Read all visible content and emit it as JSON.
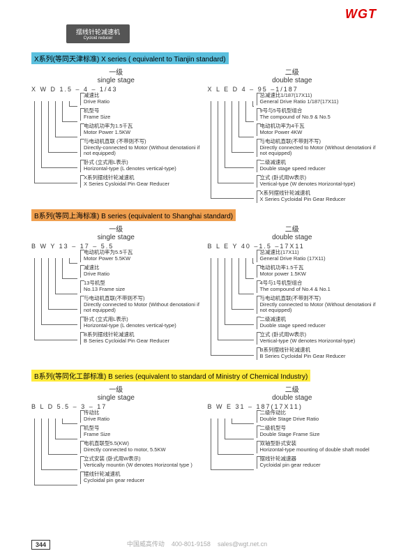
{
  "logo": "WGT",
  "tab": {
    "cn": "摆线针轮减速机",
    "en": "Cycloid reducer"
  },
  "pageNumber": "344",
  "footer": {
    "company": "中国威高传动",
    "phone": "400-801-9158",
    "email": "sales@wgt.net.cn"
  },
  "sections": [
    {
      "headerClass": "hdr-blue",
      "header": "X系列(等同天津标准)   X series ( equivalent to Tianjin standard)",
      "single": {
        "titleCn": "一级",
        "titleEn": "single stage",
        "code": "X  W  D  1.5 – 4 – 1/43",
        "items": [
          {
            "cn": "减速比",
            "en": "Drive Ratio"
          },
          {
            "cn": "机型号",
            "en": "Frame Size"
          },
          {
            "cn": "电动机功率为1.5千瓦",
            "en": "Motor Power 1.5KW"
          },
          {
            "cn": "与电动机直联 (不带则不写)",
            "en": "Directly-connected to Motor (Without denotationi if not equipped)"
          },
          {
            "cn": "卧式 (立式用L表示)",
            "en": "Horizontal-type (L denotes vertical-type)"
          },
          {
            "cn": "X系列摆线针轮减速机",
            "en": "X Series Cysloidal Pin Gear Reducer"
          }
        ]
      },
      "double": {
        "titleCn": "二级",
        "titleEn": "double stage",
        "code": "X  L  E  D  4 – 95 –1/187",
        "items": [
          {
            "cn": "总减速比1/187(17X11)",
            "en": "General Drive Ratio 1/187(17X11)"
          },
          {
            "cn": "9号与5号机型组合",
            "en": "The compound of No.9 & No.5"
          },
          {
            "cn": "电动机功率为4千瓦",
            "en": "Motor Power 4KW"
          },
          {
            "cn": "与电动机直联(不带则不写)",
            "en": "Directly connected to Motor (Without denotationi if not equipped)"
          },
          {
            "cn": "二级减速机",
            "en": "Double stage speed reducer"
          },
          {
            "cn": "立式 (卧式用W表示)",
            "en": "Vertical-type (W denotes Horizontal-type)"
          },
          {
            "cn": "X系列摆线针轮减速机",
            "en": "X Series Cycloidal Pin Gear Reducer"
          }
        ]
      }
    },
    {
      "headerClass": "hdr-orange",
      "header": "B系列(等同上海标准)   B series (equivalent to Shanghai standard)",
      "single": {
        "titleCn": "一级",
        "titleEn": "single stage",
        "code": "B  W  Y  13 – 17 – 5.5",
        "items": [
          {
            "cn": "电动机功率为5.5千瓦",
            "en": "Motor Power 5.5KW"
          },
          {
            "cn": "减速比",
            "en": "Drive Ratio"
          },
          {
            "cn": "13号机型",
            "en": "No.13 Frame size"
          },
          {
            "cn": "与电动机直联(不带则不写)",
            "en": "Directly connected to Motor (Without denotationi if not equipped)"
          },
          {
            "cn": "卧式 (立式用L表示)",
            "en": "Horizontal-type (L denotes vertical-type)"
          },
          {
            "cn": "B系列摆线针轮减速机",
            "en": "B Series Cycloidal Pin Gear Reducer"
          }
        ]
      },
      "double": {
        "titleCn": "二级",
        "titleEn": "double stage",
        "code": "B  L  E  Y  40 –1.5 –17X11",
        "items": [
          {
            "cn": "总减速比(17X11)",
            "en": "General Drive Ratio (17X11)"
          },
          {
            "cn": "电动机功率1.5千瓦",
            "en": "Motor power 1.5KW"
          },
          {
            "cn": "4号与1号机型组合",
            "en": "The compound of No.4 & No.1"
          },
          {
            "cn": "与电动机直联(不带则不写)",
            "en": "Directly connected to Motor (Without denotationi if not equipped)"
          },
          {
            "cn": "二级减速机",
            "en": "Duoble stage speed reducer"
          },
          {
            "cn": "立式 (卧式用W表示)",
            "en": "Vertical-type (W denotes Horizontal-type)"
          },
          {
            "cn": "B系列摆线针轮减速机",
            "en": "B Series Cycloidal Pin Gear Reducer"
          }
        ]
      }
    },
    {
      "headerClass": "hdr-yellow",
      "header": "B系列(等同化工部标准)   B series (equivalent to standard of Ministry of Chemical Industry)",
      "single": {
        "titleCn": "一级",
        "titleEn": "single stage",
        "code": "B    L    D 5.5 – 3 – 17",
        "items": [
          {
            "cn": "传动比",
            "en": "Drive Ratio"
          },
          {
            "cn": "机型号",
            "en": "Frame Size"
          },
          {
            "cn": "电机直联型5.5(KW)",
            "en": "Directly connected to motor, 5.5KW"
          },
          {
            "cn": "立式安装 (卧式用W表示)",
            "en": "Vertically mountin (W denotes Horizontal type )"
          },
          {
            "cn": "摆线针轮减速机",
            "en": "Cycloidal pin gear reducer"
          }
        ]
      },
      "double": {
        "titleCn": "二级",
        "titleEn": "double stage",
        "code": "B   W   E 31 – 187(17X11)",
        "items": [
          {
            "cn": "二级传动比",
            "en": "Double Stage Drive Ratio"
          },
          {
            "cn": "二级机型号",
            "en": "Double Stage Frame Size"
          },
          {
            "cn": "双轴型卧式安装",
            "en": "Horizontal-type mounting of double shaft model"
          },
          {
            "cn": "摆线针轮减速器",
            "en": "Cycloidal pin gear reducer"
          }
        ]
      }
    }
  ]
}
